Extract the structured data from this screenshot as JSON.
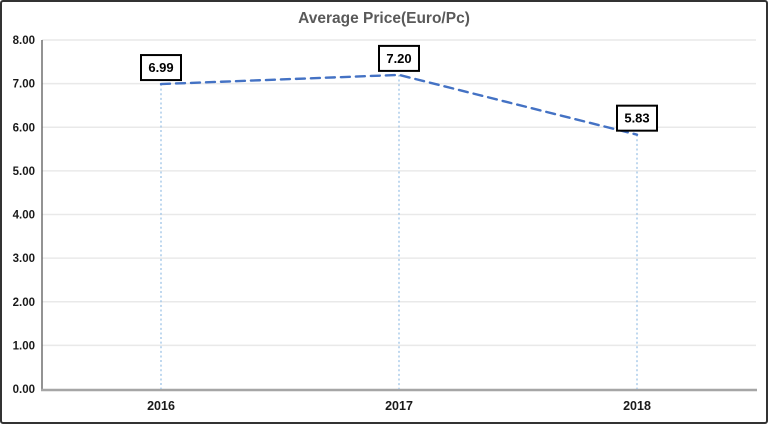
{
  "chart_data": {
    "type": "line",
    "title": "Average Price(Euro/Pc)",
    "categories": [
      "2016",
      "2017",
      "2018"
    ],
    "series": [
      {
        "name": "Average Price",
        "values": [
          6.99,
          7.2,
          5.83
        ],
        "value_labels": [
          "6.99",
          "7.20",
          "5.83"
        ]
      }
    ],
    "xlabel": "",
    "ylabel": "",
    "ylim": [
      0,
      8
    ],
    "ytick_step": 1,
    "ytick_labels": [
      "0.00",
      "1.00",
      "2.00",
      "3.00",
      "4.00",
      "5.00",
      "6.00",
      "7.00",
      "8.00"
    ],
    "grid": "horizontal",
    "legend": "none",
    "line_dash": "dashed",
    "drop_lines": "dotted-vertical",
    "data_labels_boxed": true,
    "colors": {
      "line": "#4472C4",
      "drop_line": "#9DC3E6",
      "gridline": "#E9E9E9",
      "axis_line": "#A6A6A6",
      "plot_border": "#595959",
      "title": "#595959",
      "tick_text": "#1a1a1a",
      "label_box_bg": "#FFFFFF",
      "label_box_border": "#000000",
      "outer_border": "#333333"
    }
  }
}
